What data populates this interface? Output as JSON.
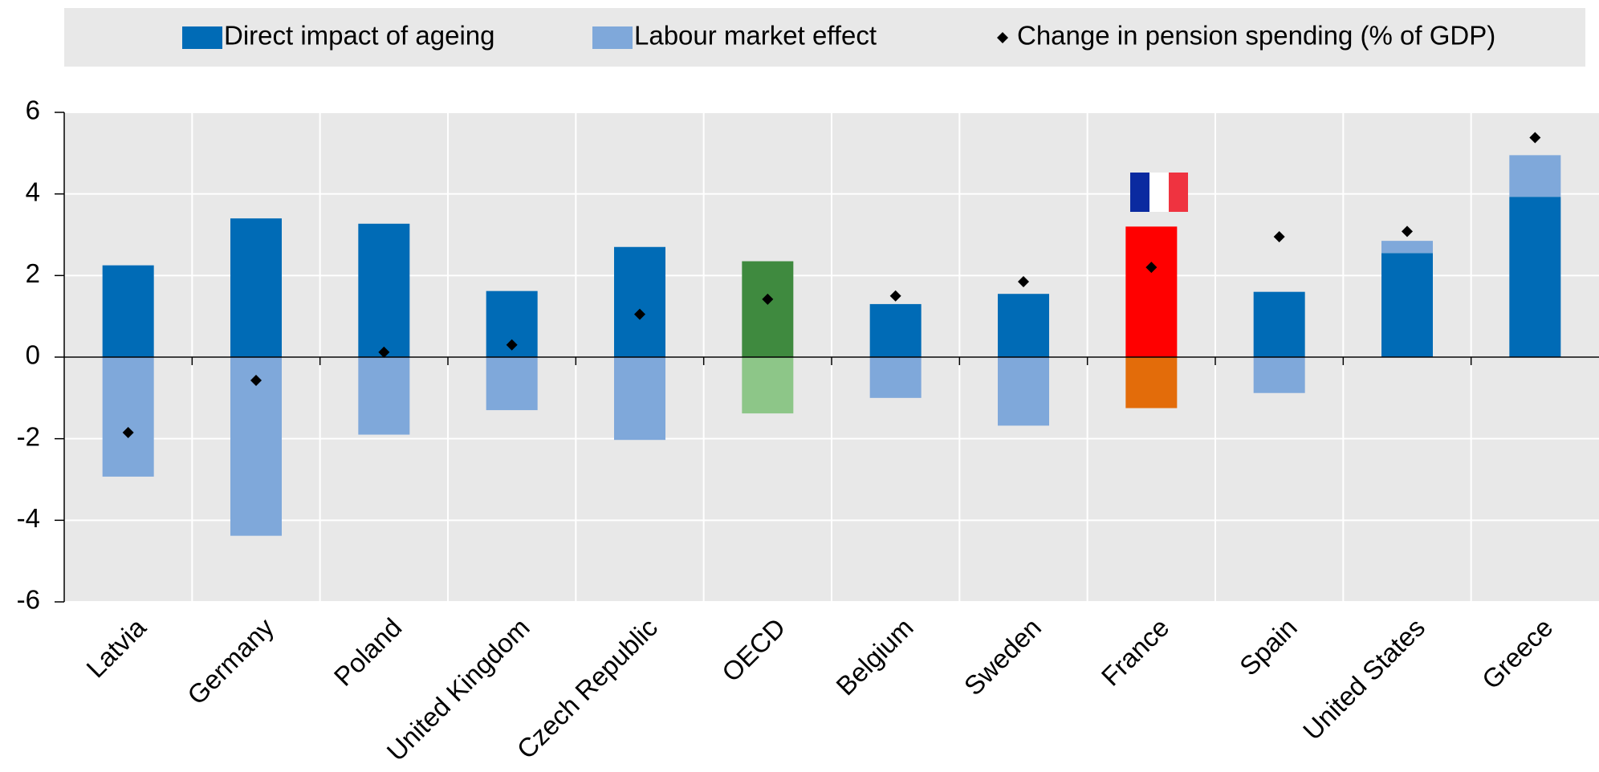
{
  "chart_data": {
    "type": "bar",
    "categories": [
      "Latvia",
      "Germany",
      "Poland",
      "United Kingdom",
      "Czech Republic",
      "OECD",
      "Belgium",
      "Sweden",
      "France",
      "Spain",
      "United States",
      "Greece"
    ],
    "series": [
      {
        "name": "Direct impact of ageing",
        "color": "#006bb6",
        "colors": [
          "#006bb6",
          "#006bb6",
          "#006bb6",
          "#006bb6",
          "#006bb6",
          "#3f8a3f",
          "#006bb6",
          "#006bb6",
          "#ff0000",
          "#006bb6",
          "#006bb6",
          "#006bb6"
        ],
        "values": [
          2.25,
          3.4,
          3.27,
          1.62,
          2.7,
          2.35,
          1.3,
          1.55,
          3.2,
          1.6,
          2.55,
          3.93
        ]
      },
      {
        "name": "Labour market effect",
        "color": "#7fa8da",
        "colors": [
          "#7fa8da",
          "#7fa8da",
          "#7fa8da",
          "#7fa8da",
          "#7fa8da",
          "#8dc688",
          "#7fa8da",
          "#7fa8da",
          "#e36c0a",
          "#7fa8da",
          "#7fa8da",
          "#7fa8da"
        ],
        "values": [
          -2.93,
          -4.38,
          -1.9,
          -1.3,
          -2.03,
          -1.38,
          -1.0,
          -1.68,
          -1.25,
          -0.88,
          0.3,
          1.02
        ]
      },
      {
        "name": "Change in pension spending (% of GDP)",
        "type": "scatter",
        "color": "#000000",
        "values": [
          -1.85,
          -0.57,
          0.12,
          0.3,
          1.05,
          1.42,
          1.5,
          1.85,
          2.2,
          2.95,
          3.08,
          5.38
        ]
      }
    ],
    "ylim": [
      -6,
      6
    ],
    "yticks": [
      -6,
      -4,
      -2,
      0,
      2,
      4,
      6
    ],
    "grid": true,
    "legend": "top"
  }
}
